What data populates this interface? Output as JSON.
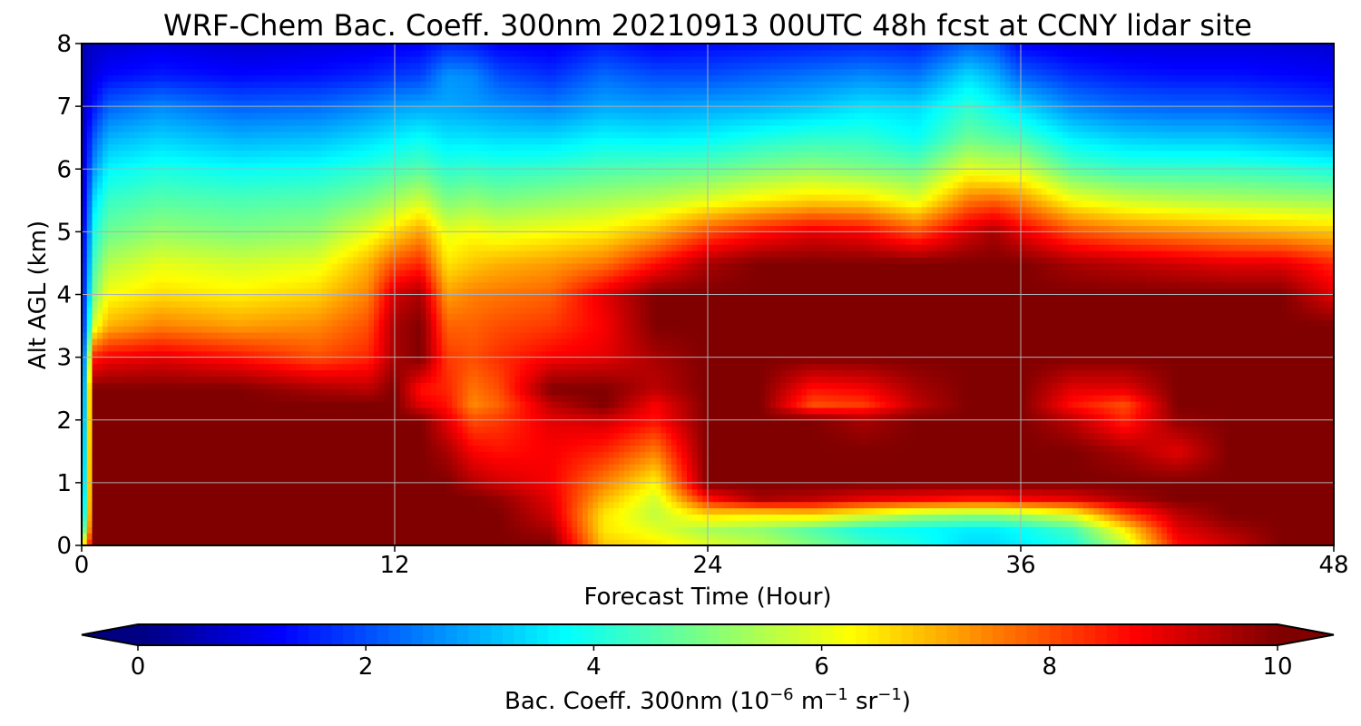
{
  "chart_data": {
    "type": "heatmap",
    "title": "WRF-Chem Bac. Coeff. 300nm  20210913 00UTC 48h fcst at CCNY lidar site",
    "xlabel": "Forecast Time (Hour)",
    "ylabel": "Alt AGL (km)",
    "xlim": [
      0,
      48
    ],
    "ylim": [
      0,
      8
    ],
    "xticks": [
      "0",
      "12",
      "24",
      "36",
      "48"
    ],
    "yticks": [
      "0",
      "1",
      "2",
      "3",
      "4",
      "5",
      "6",
      "7",
      "8"
    ],
    "grid": true,
    "colormap": "jet",
    "colorbar": {
      "label_main": "Bac. Coeff. 300nm  (10",
      "label_exp1": "−6",
      "label_unit1": " m",
      "label_exp2": "−1",
      "label_unit2": " sr",
      "label_exp3": "−1",
      "label_close": ")",
      "range": [
        0,
        10
      ],
      "extend": "both",
      "ticks": [
        "0",
        "2",
        "4",
        "6",
        "8",
        "10"
      ]
    },
    "x": [
      0,
      0.5,
      1,
      3,
      6,
      9,
      11,
      12,
      13,
      14,
      15,
      16,
      18,
      20,
      22,
      24,
      26,
      28,
      30,
      32,
      34,
      35,
      36,
      38,
      40,
      42,
      44,
      46,
      48
    ],
    "y": [
      0,
      0.25,
      0.5,
      0.75,
      1,
      1.5,
      2,
      2.25,
      2.5,
      3,
      3.5,
      4,
      4.5,
      5,
      5.5,
      6,
      6.5,
      7,
      7.5,
      8
    ],
    "z_columns": [
      [
        6.0,
        3.5,
        2.5,
        2.2,
        2.0,
        1.8,
        1.6,
        1.5,
        1.4,
        1.3,
        1.1,
        1.0,
        0.9,
        0.8,
        0.7,
        0.6,
        0.6,
        0.5,
        0.5,
        0.5
      ],
      [
        10,
        10,
        10,
        10,
        10,
        10,
        10,
        10,
        10,
        8.5,
        6.0,
        5.0,
        4.5,
        4.0,
        3.5,
        2.8,
        2.2,
        1.5,
        1.0,
        0.7
      ],
      [
        10,
        10,
        10,
        10,
        10,
        10,
        10,
        10,
        10,
        8.8,
        7.0,
        6.2,
        5.5,
        4.8,
        4.3,
        3.7,
        3.0,
        2.2,
        1.3,
        0.8
      ],
      [
        10,
        10,
        10,
        10,
        10,
        10,
        10,
        10,
        10,
        9.0,
        7.5,
        6.6,
        6.0,
        5.2,
        4.6,
        4.0,
        3.3,
        2.6,
        1.5,
        1.0
      ],
      [
        10,
        10,
        10,
        10,
        10,
        10,
        10,
        10,
        10,
        8.6,
        7.2,
        6.4,
        5.8,
        5.0,
        4.5,
        3.8,
        3.0,
        2.2,
        1.3,
        0.8
      ],
      [
        10,
        10,
        10,
        10,
        10,
        10,
        10,
        10,
        9.6,
        8.0,
        7.4,
        6.7,
        6.0,
        5.2,
        4.6,
        3.9,
        3.1,
        2.3,
        1.4,
        0.9
      ],
      [
        10,
        10,
        10,
        10,
        10,
        10,
        10,
        10,
        9.4,
        8.4,
        8.0,
        7.5,
        7.0,
        6.0,
        5.0,
        4.2,
        3.4,
        2.6,
        1.6,
        1.0
      ],
      [
        10,
        10,
        10,
        10,
        10,
        10,
        10,
        10,
        10,
        9.6,
        9.6,
        9.2,
        8.0,
        6.6,
        5.4,
        4.4,
        3.6,
        2.8,
        1.8,
        1.1
      ],
      [
        10,
        10,
        10,
        10,
        10,
        10,
        10,
        9.0,
        8.6,
        10,
        10,
        9.6,
        8.4,
        7.2,
        5.8,
        4.6,
        3.8,
        2.9,
        1.9,
        1.2
      ],
      [
        10,
        10,
        10,
        10,
        10,
        9.6,
        9.0,
        8.6,
        8.4,
        8.2,
        7.8,
        7.2,
        6.5,
        6.0,
        5.0,
        4.2,
        3.5,
        2.9,
        2.7,
        1.6
      ],
      [
        10,
        10,
        10,
        10,
        9.5,
        8.8,
        8.0,
        7.4,
        7.6,
        8.0,
        7.8,
        7.5,
        6.8,
        6.2,
        5.2,
        4.3,
        3.5,
        2.8,
        2.6,
        1.5
      ],
      [
        10,
        10,
        10,
        9.8,
        9.2,
        8.6,
        8.2,
        7.8,
        8.0,
        8.3,
        8.0,
        7.6,
        7.0,
        6.0,
        5.0,
        4.2,
        3.4,
        2.7,
        2.0,
        1.2
      ],
      [
        10,
        9.6,
        9.2,
        9.0,
        8.8,
        8.8,
        9.0,
        9.4,
        10,
        8.8,
        8.2,
        7.8,
        7.2,
        6.2,
        5.2,
        4.3,
        3.4,
        2.5,
        1.7,
        1.1
      ],
      [
        6.8,
        6.5,
        6.5,
        7.0,
        7.5,
        8.4,
        9.2,
        10,
        10,
        9.0,
        8.8,
        9.0,
        7.6,
        6.4,
        5.4,
        4.5,
        3.7,
        2.9,
        2.3,
        1.5
      ],
      [
        6.5,
        6.0,
        5.6,
        5.8,
        6.3,
        7.5,
        8.6,
        8.8,
        9.4,
        9.6,
        10,
        10,
        8.6,
        7.0,
        5.6,
        4.6,
        3.6,
        2.8,
        2.0,
        1.2
      ],
      [
        6.0,
        5.4,
        6.6,
        8.6,
        10,
        10,
        10,
        10,
        10,
        10,
        10,
        10,
        9.6,
        8.0,
        6.0,
        4.7,
        3.7,
        2.9,
        2.0,
        1.3
      ],
      [
        5.6,
        5.2,
        6.4,
        9.6,
        10,
        10,
        10,
        10,
        10,
        10,
        10,
        10,
        10,
        8.6,
        6.4,
        5.0,
        4.0,
        3.0,
        2.2,
        1.4
      ],
      [
        5.0,
        4.6,
        6.6,
        9.4,
        10,
        10,
        10,
        8.0,
        8.6,
        10,
        10,
        10,
        10,
        9.0,
        6.7,
        5.2,
        4.2,
        3.2,
        2.4,
        1.5
      ],
      [
        4.4,
        4.0,
        6.0,
        9.0,
        10,
        10,
        9.6,
        8.2,
        8.8,
        10,
        10,
        10,
        10,
        8.8,
        6.6,
        5.0,
        4.2,
        3.5,
        2.6,
        1.6
      ],
      [
        4.0,
        3.8,
        5.4,
        8.8,
        10,
        10,
        10,
        9.4,
        9.6,
        10,
        10,
        10,
        10,
        8.0,
        6.0,
        4.8,
        3.8,
        3.4,
        2.4,
        1.5
      ],
      [
        3.4,
        3.6,
        5.2,
        8.6,
        10,
        10,
        10,
        10,
        10,
        10,
        10,
        10,
        10,
        9.2,
        7.6,
        6.0,
        4.8,
        4.2,
        3.4,
        2.2
      ],
      [
        3.4,
        3.6,
        5.2,
        8.6,
        10,
        10,
        10,
        10,
        10,
        10,
        10,
        10,
        10,
        9.6,
        7.8,
        5.8,
        4.6,
        3.8,
        3.0,
        2.0
      ],
      [
        3.6,
        3.8,
        5.4,
        8.8,
        10,
        10,
        10,
        10,
        10,
        10,
        10,
        10,
        10,
        9.0,
        7.4,
        5.8,
        4.4,
        3.4,
        2.2,
        1.2
      ],
      [
        4.0,
        4.4,
        6.0,
        9.0,
        10,
        10,
        9.4,
        8.6,
        9.0,
        10,
        10,
        10,
        9.6,
        8.0,
        6.2,
        4.6,
        3.6,
        2.6,
        1.7,
        1.0
      ],
      [
        5.6,
        6.4,
        8.0,
        9.6,
        10,
        9.6,
        8.4,
        8.0,
        9.0,
        10,
        10,
        10,
        9.4,
        7.6,
        5.8,
        4.3,
        3.3,
        2.3,
        1.5,
        0.9
      ],
      [
        8.6,
        9.0,
        9.4,
        10,
        10,
        9.0,
        9.8,
        10,
        10,
        10,
        10,
        10,
        9.2,
        7.4,
        5.6,
        4.3,
        3.2,
        2.2,
        1.4,
        0.9
      ],
      [
        9.2,
        9.6,
        10,
        10,
        10,
        10,
        10,
        10,
        10,
        10,
        10,
        10,
        9.0,
        7.2,
        5.5,
        4.3,
        3.2,
        2.2,
        1.4,
        0.9
      ],
      [
        10,
        10,
        10,
        10,
        10,
        10,
        10,
        10,
        10,
        10,
        10,
        10,
        9.0,
        7.0,
        5.4,
        4.2,
        3.0,
        2.0,
        1.3,
        0.9
      ],
      [
        10,
        10,
        10,
        10,
        10,
        10,
        10,
        10,
        10,
        10,
        10,
        9.0,
        8.4,
        6.8,
        5.3,
        4.0,
        2.8,
        1.8,
        1.2,
        0.8
      ]
    ]
  }
}
